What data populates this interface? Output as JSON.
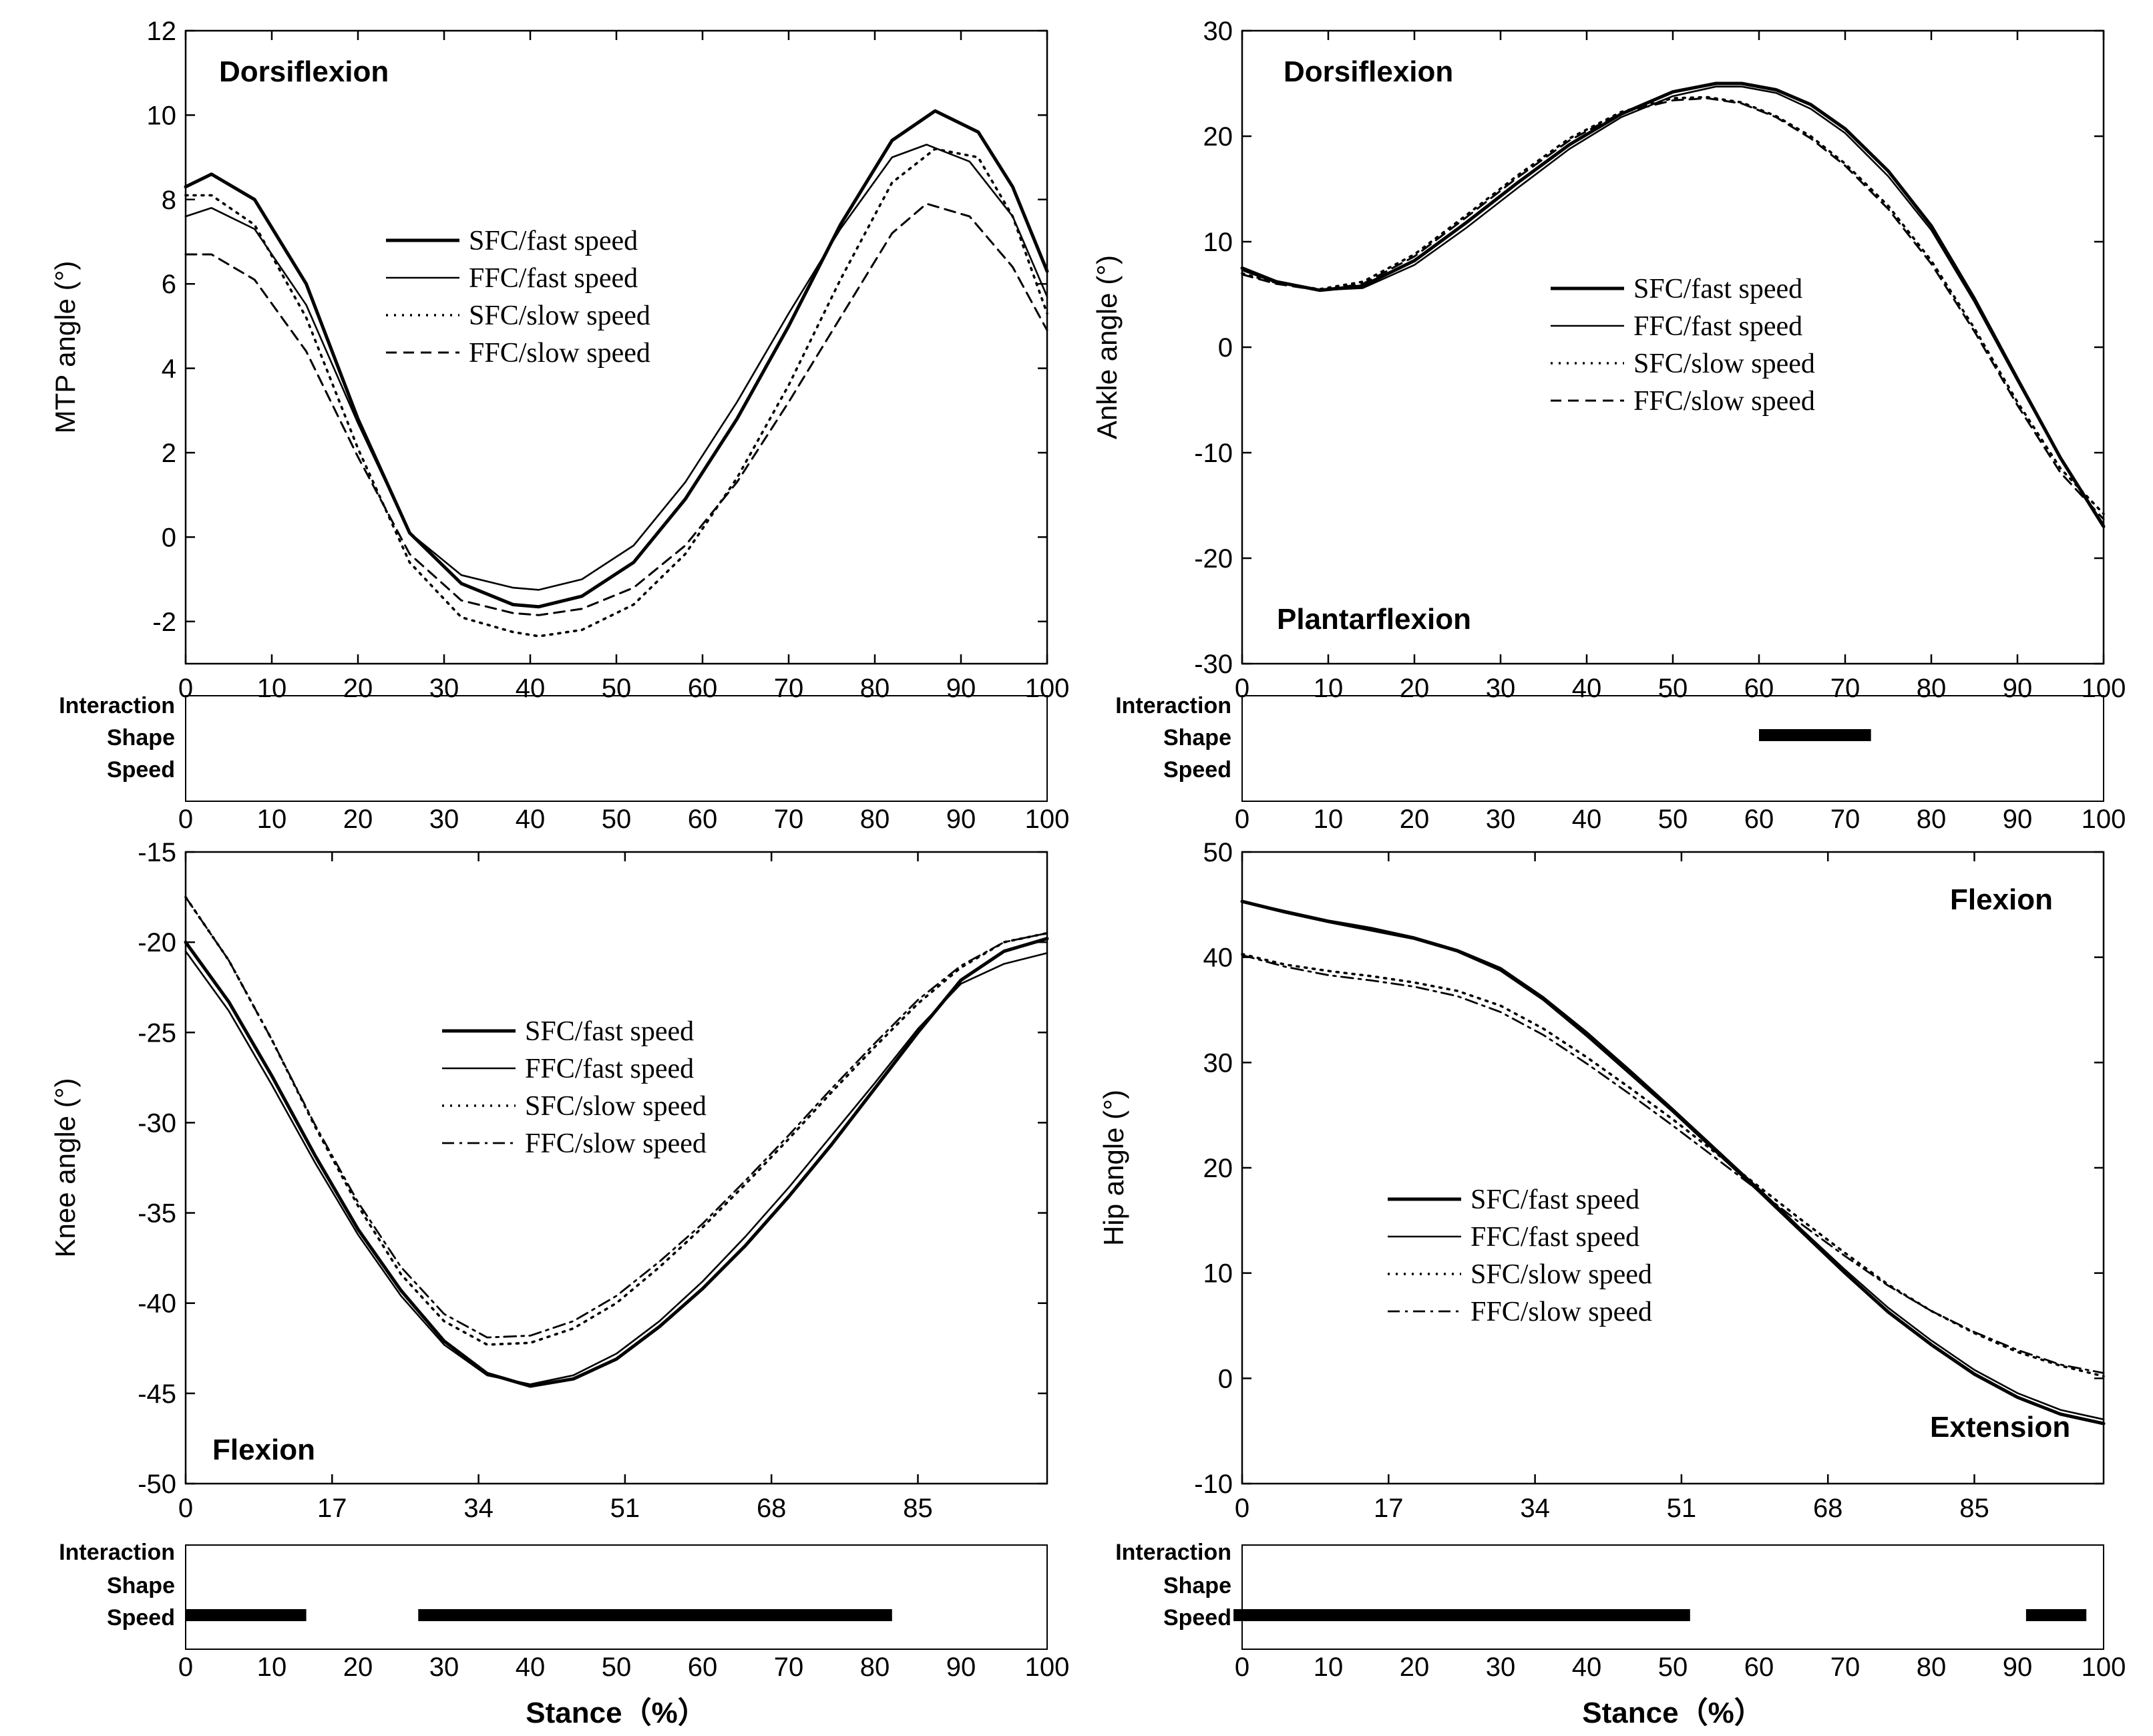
{
  "series_names": [
    "SFC/fast speed",
    "FFC/fast speed",
    "SFC/slow speed",
    "FFC/slow speed"
  ],
  "factor_labels": [
    "Interaction",
    "Shape",
    "Speed"
  ],
  "xlabel": "Stance（%）",
  "spm_ticks": [
    0,
    10,
    20,
    30,
    40,
    50,
    60,
    70,
    80,
    90,
    100
  ],
  "chart_data": [
    {
      "type": "line",
      "id": "mtp",
      "ylabel": "MTP angle (°)",
      "annotations": {
        "top": "Dorsiflexion",
        "bottom": ""
      },
      "ylim": [
        -3,
        12
      ],
      "yticks": [
        -2,
        0,
        2,
        4,
        6,
        8,
        10,
        12
      ],
      "xlim": [
        0,
        100
      ],
      "xticks": [
        0,
        10,
        20,
        30,
        40,
        50,
        60,
        70,
        80,
        90,
        100
      ],
      "legend_position": "upper-center",
      "series": [
        {
          "name": "SFC/fast speed",
          "style": "thick",
          "x": [
            0,
            3,
            8,
            14,
            20,
            26,
            32,
            38,
            41,
            46,
            52,
            58,
            64,
            70,
            76,
            82,
            87,
            92,
            96,
            100
          ],
          "y": [
            8.3,
            8.6,
            8.0,
            6.0,
            2.8,
            0.1,
            -1.1,
            -1.6,
            -1.65,
            -1.4,
            -0.6,
            0.9,
            2.8,
            5.0,
            7.4,
            9.4,
            10.1,
            9.6,
            8.3,
            6.3
          ]
        },
        {
          "name": "FFC/fast speed",
          "style": "thin",
          "x": [
            0,
            3,
            8,
            14,
            20,
            26,
            32,
            38,
            41,
            46,
            52,
            58,
            64,
            70,
            76,
            82,
            86,
            91,
            96,
            100
          ],
          "y": [
            7.6,
            7.8,
            7.3,
            5.5,
            2.7,
            0.1,
            -0.9,
            -1.2,
            -1.25,
            -1.0,
            -0.2,
            1.3,
            3.2,
            5.3,
            7.3,
            9.0,
            9.3,
            8.9,
            7.6,
            5.7
          ]
        },
        {
          "name": "SFC/slow speed",
          "style": "dotted",
          "x": [
            0,
            3,
            8,
            14,
            20,
            26,
            32,
            38,
            41,
            46,
            52,
            58,
            64,
            70,
            76,
            82,
            87,
            92,
            96,
            100
          ],
          "y": [
            8.1,
            8.1,
            7.4,
            5.2,
            2.1,
            -0.6,
            -1.9,
            -2.25,
            -2.35,
            -2.2,
            -1.6,
            -0.4,
            1.4,
            3.6,
            6.1,
            8.4,
            9.2,
            9.0,
            7.6,
            5.3
          ]
        },
        {
          "name": "FFC/slow speed",
          "style": "dashed",
          "x": [
            0,
            3,
            8,
            14,
            20,
            26,
            32,
            38,
            41,
            46,
            52,
            58,
            64,
            70,
            76,
            82,
            86,
            91,
            96,
            100
          ],
          "y": [
            6.7,
            6.7,
            6.1,
            4.4,
            1.9,
            -0.4,
            -1.5,
            -1.8,
            -1.85,
            -1.7,
            -1.2,
            -0.2,
            1.3,
            3.2,
            5.2,
            7.2,
            7.9,
            7.6,
            6.4,
            4.9
          ]
        }
      ],
      "significance": {
        "Interaction": [],
        "Shape": [],
        "Speed": []
      }
    },
    {
      "type": "line",
      "id": "ankle",
      "ylabel": "Ankle angle (°)",
      "annotations": {
        "top": "Dorsiflexion",
        "bottom": "Plantarflexion"
      },
      "ylim": [
        -30,
        30
      ],
      "yticks": [
        -30,
        -20,
        -10,
        0,
        10,
        20,
        30
      ],
      "xlim": [
        0,
        100
      ],
      "xticks": [
        0,
        10,
        20,
        30,
        40,
        50,
        60,
        70,
        80,
        90,
        100
      ],
      "legend_position": "center-right",
      "series": [
        {
          "name": "SFC/fast speed",
          "style": "thick",
          "x": [
            0,
            4,
            9,
            14,
            20,
            26,
            32,
            38,
            44,
            50,
            55,
            58,
            62,
            66,
            70,
            75,
            80,
            85,
            90,
            95,
            100
          ],
          "y": [
            7.5,
            6.2,
            5.4,
            5.8,
            8.2,
            11.8,
            15.6,
            19.2,
            22.1,
            24.2,
            25.0,
            25.0,
            24.4,
            23.0,
            20.7,
            16.7,
            11.5,
            4.6,
            -3.0,
            -10.5,
            -17.0
          ]
        },
        {
          "name": "FFC/fast speed",
          "style": "thin",
          "x": [
            0,
            4,
            9,
            14,
            20,
            26,
            32,
            38,
            44,
            50,
            55,
            58,
            62,
            66,
            70,
            75,
            80,
            85,
            90,
            95,
            100
          ],
          "y": [
            7.3,
            6.1,
            5.4,
            5.6,
            7.8,
            11.3,
            15.1,
            18.8,
            21.8,
            23.8,
            24.7,
            24.7,
            24.1,
            22.6,
            20.3,
            16.2,
            11.1,
            4.3,
            -3.2,
            -10.6,
            -16.8
          ]
        },
        {
          "name": "SFC/slow speed",
          "style": "dotted",
          "x": [
            0,
            4,
            9,
            14,
            20,
            26,
            32,
            38,
            44,
            50,
            54,
            58,
            62,
            66,
            70,
            75,
            80,
            85,
            90,
            95,
            100
          ],
          "y": [
            7.0,
            6.1,
            5.5,
            6.2,
            8.8,
            12.5,
            16.3,
            19.8,
            22.3,
            23.6,
            23.7,
            23.2,
            21.9,
            20.0,
            17.4,
            13.4,
            8.2,
            1.8,
            -5.2,
            -11.5,
            -15.8
          ]
        },
        {
          "name": "FFC/slow speed",
          "style": "dashed",
          "x": [
            0,
            4,
            9,
            14,
            20,
            26,
            32,
            38,
            44,
            50,
            54,
            58,
            62,
            66,
            70,
            75,
            80,
            85,
            90,
            95,
            100
          ],
          "y": [
            6.9,
            6.0,
            5.4,
            6.0,
            8.6,
            12.3,
            16.1,
            19.6,
            22.2,
            23.4,
            23.6,
            23.1,
            21.8,
            19.8,
            17.2,
            13.1,
            7.9,
            1.5,
            -5.5,
            -11.9,
            -16.3
          ]
        }
      ],
      "significance": {
        "Interaction": [],
        "Shape": [
          [
            60,
            73
          ]
        ],
        "Speed": []
      }
    },
    {
      "type": "line",
      "id": "knee",
      "ylabel": "Knee angle (°)",
      "annotations": {
        "top": "",
        "bottom": "Flexion"
      },
      "ylim": [
        -50,
        -15
      ],
      "yticks": [
        -50,
        -45,
        -40,
        -35,
        -30,
        -25,
        -20,
        -15
      ],
      "xlim": [
        0,
        100
      ],
      "xticks": [
        0,
        17,
        34,
        51,
        68,
        85
      ],
      "legend_position": "upper-center",
      "series": [
        {
          "name": "SFC/fast speed",
          "style": "thick",
          "x": [
            0,
            5,
            10,
            15,
            20,
            25,
            30,
            35,
            40,
            45,
            50,
            55,
            60,
            65,
            70,
            75,
            80,
            85,
            90,
            95,
            100
          ],
          "y": [
            -20.0,
            -23.3,
            -27.4,
            -31.8,
            -35.9,
            -39.3,
            -42.1,
            -43.9,
            -44.6,
            -44.2,
            -43.1,
            -41.3,
            -39.2,
            -36.8,
            -34.1,
            -31.2,
            -28.1,
            -25.0,
            -22.1,
            -20.5,
            -19.8
          ]
        },
        {
          "name": "FFC/fast speed",
          "style": "thin",
          "x": [
            0,
            5,
            10,
            15,
            20,
            25,
            30,
            35,
            40,
            45,
            50,
            55,
            60,
            65,
            70,
            75,
            80,
            85,
            90,
            95,
            100
          ],
          "y": [
            -20.5,
            -23.8,
            -27.9,
            -32.2,
            -36.2,
            -39.6,
            -42.3,
            -44.0,
            -44.5,
            -44.0,
            -42.8,
            -41.0,
            -38.8,
            -36.3,
            -33.6,
            -30.7,
            -27.8,
            -24.8,
            -22.3,
            -21.2,
            -20.6
          ]
        },
        {
          "name": "SFC/slow speed",
          "style": "dotted",
          "x": [
            0,
            5,
            10,
            15,
            20,
            25,
            30,
            35,
            40,
            45,
            50,
            55,
            60,
            65,
            70,
            75,
            80,
            85,
            90,
            95,
            100
          ],
          "y": [
            -17.5,
            -21.0,
            -25.4,
            -30.2,
            -34.6,
            -38.4,
            -41.0,
            -42.3,
            -42.2,
            -41.4,
            -40.0,
            -38.0,
            -35.8,
            -33.4,
            -30.9,
            -28.3,
            -25.8,
            -23.4,
            -21.4,
            -20.0,
            -19.5
          ]
        },
        {
          "name": "FFC/slow speed",
          "style": "dashdot",
          "x": [
            0,
            5,
            10,
            15,
            20,
            25,
            30,
            35,
            40,
            45,
            50,
            55,
            60,
            65,
            70,
            75,
            80,
            85,
            90,
            95,
            100
          ],
          "y": [
            -17.5,
            -21.0,
            -25.4,
            -30.1,
            -34.4,
            -38.0,
            -40.6,
            -41.9,
            -41.8,
            -41.0,
            -39.6,
            -37.7,
            -35.6,
            -33.2,
            -30.7,
            -28.1,
            -25.6,
            -23.2,
            -21.3,
            -20.0,
            -19.5
          ]
        }
      ],
      "significance": {
        "Interaction": [],
        "Shape": [],
        "Speed": [
          [
            0,
            14
          ],
          [
            27,
            82
          ]
        ]
      }
    },
    {
      "type": "line",
      "id": "hip",
      "ylabel": "Hip angle (°)",
      "annotations": {
        "top": "Flexion",
        "bottom": "Extension"
      },
      "ylim": [
        -10,
        50
      ],
      "yticks": [
        -10,
        0,
        10,
        20,
        30,
        40,
        50
      ],
      "xlim": [
        0,
        100
      ],
      "xticks": [
        0,
        17,
        34,
        51,
        68,
        85
      ],
      "legend_position": "lower-left",
      "series": [
        {
          "name": "SFC/fast speed",
          "style": "thick",
          "x": [
            0,
            5,
            10,
            15,
            20,
            25,
            30,
            35,
            40,
            45,
            50,
            55,
            60,
            65,
            70,
            75,
            80,
            85,
            90,
            95,
            100
          ],
          "y": [
            45.3,
            44.3,
            43.4,
            42.6,
            41.8,
            40.6,
            38.8,
            36.0,
            32.6,
            29.0,
            25.4,
            21.6,
            17.8,
            13.9,
            10.0,
            6.3,
            3.2,
            0.4,
            -1.8,
            -3.4,
            -4.3
          ]
        },
        {
          "name": "FFC/fast speed",
          "style": "thin",
          "x": [
            0,
            5,
            10,
            15,
            20,
            25,
            30,
            35,
            40,
            45,
            50,
            55,
            60,
            65,
            70,
            75,
            80,
            85,
            90,
            95,
            100
          ],
          "y": [
            45.3,
            44.4,
            43.5,
            42.8,
            41.9,
            40.7,
            39.0,
            36.2,
            32.9,
            29.3,
            25.6,
            21.8,
            18.0,
            14.1,
            10.3,
            6.7,
            3.6,
            0.8,
            -1.4,
            -3.0,
            -3.9
          ]
        },
        {
          "name": "SFC/slow speed",
          "style": "dotted",
          "x": [
            0,
            5,
            10,
            15,
            20,
            25,
            30,
            35,
            40,
            45,
            50,
            55,
            60,
            65,
            70,
            75,
            80,
            85,
            90,
            95,
            100
          ],
          "y": [
            40.3,
            39.3,
            38.7,
            38.2,
            37.6,
            36.8,
            35.4,
            33.2,
            30.5,
            27.6,
            24.6,
            21.4,
            18.2,
            15.0,
            11.9,
            8.9,
            6.4,
            4.3,
            2.5,
            1.2,
            0.2
          ]
        },
        {
          "name": "FFC/slow speed",
          "style": "dashdot",
          "x": [
            0,
            5,
            10,
            15,
            20,
            25,
            30,
            35,
            40,
            45,
            50,
            55,
            60,
            65,
            70,
            75,
            80,
            85,
            90,
            95,
            100
          ],
          "y": [
            40.2,
            39.1,
            38.3,
            37.8,
            37.2,
            36.3,
            34.8,
            32.6,
            29.9,
            27.0,
            24.0,
            20.9,
            17.8,
            14.6,
            11.6,
            8.8,
            6.4,
            4.4,
            2.7,
            1.3,
            0.5
          ]
        }
      ],
      "significance": {
        "Interaction": [],
        "Shape": [],
        "Speed": [
          [
            -1,
            52
          ],
          [
            91,
            98
          ]
        ]
      }
    }
  ]
}
